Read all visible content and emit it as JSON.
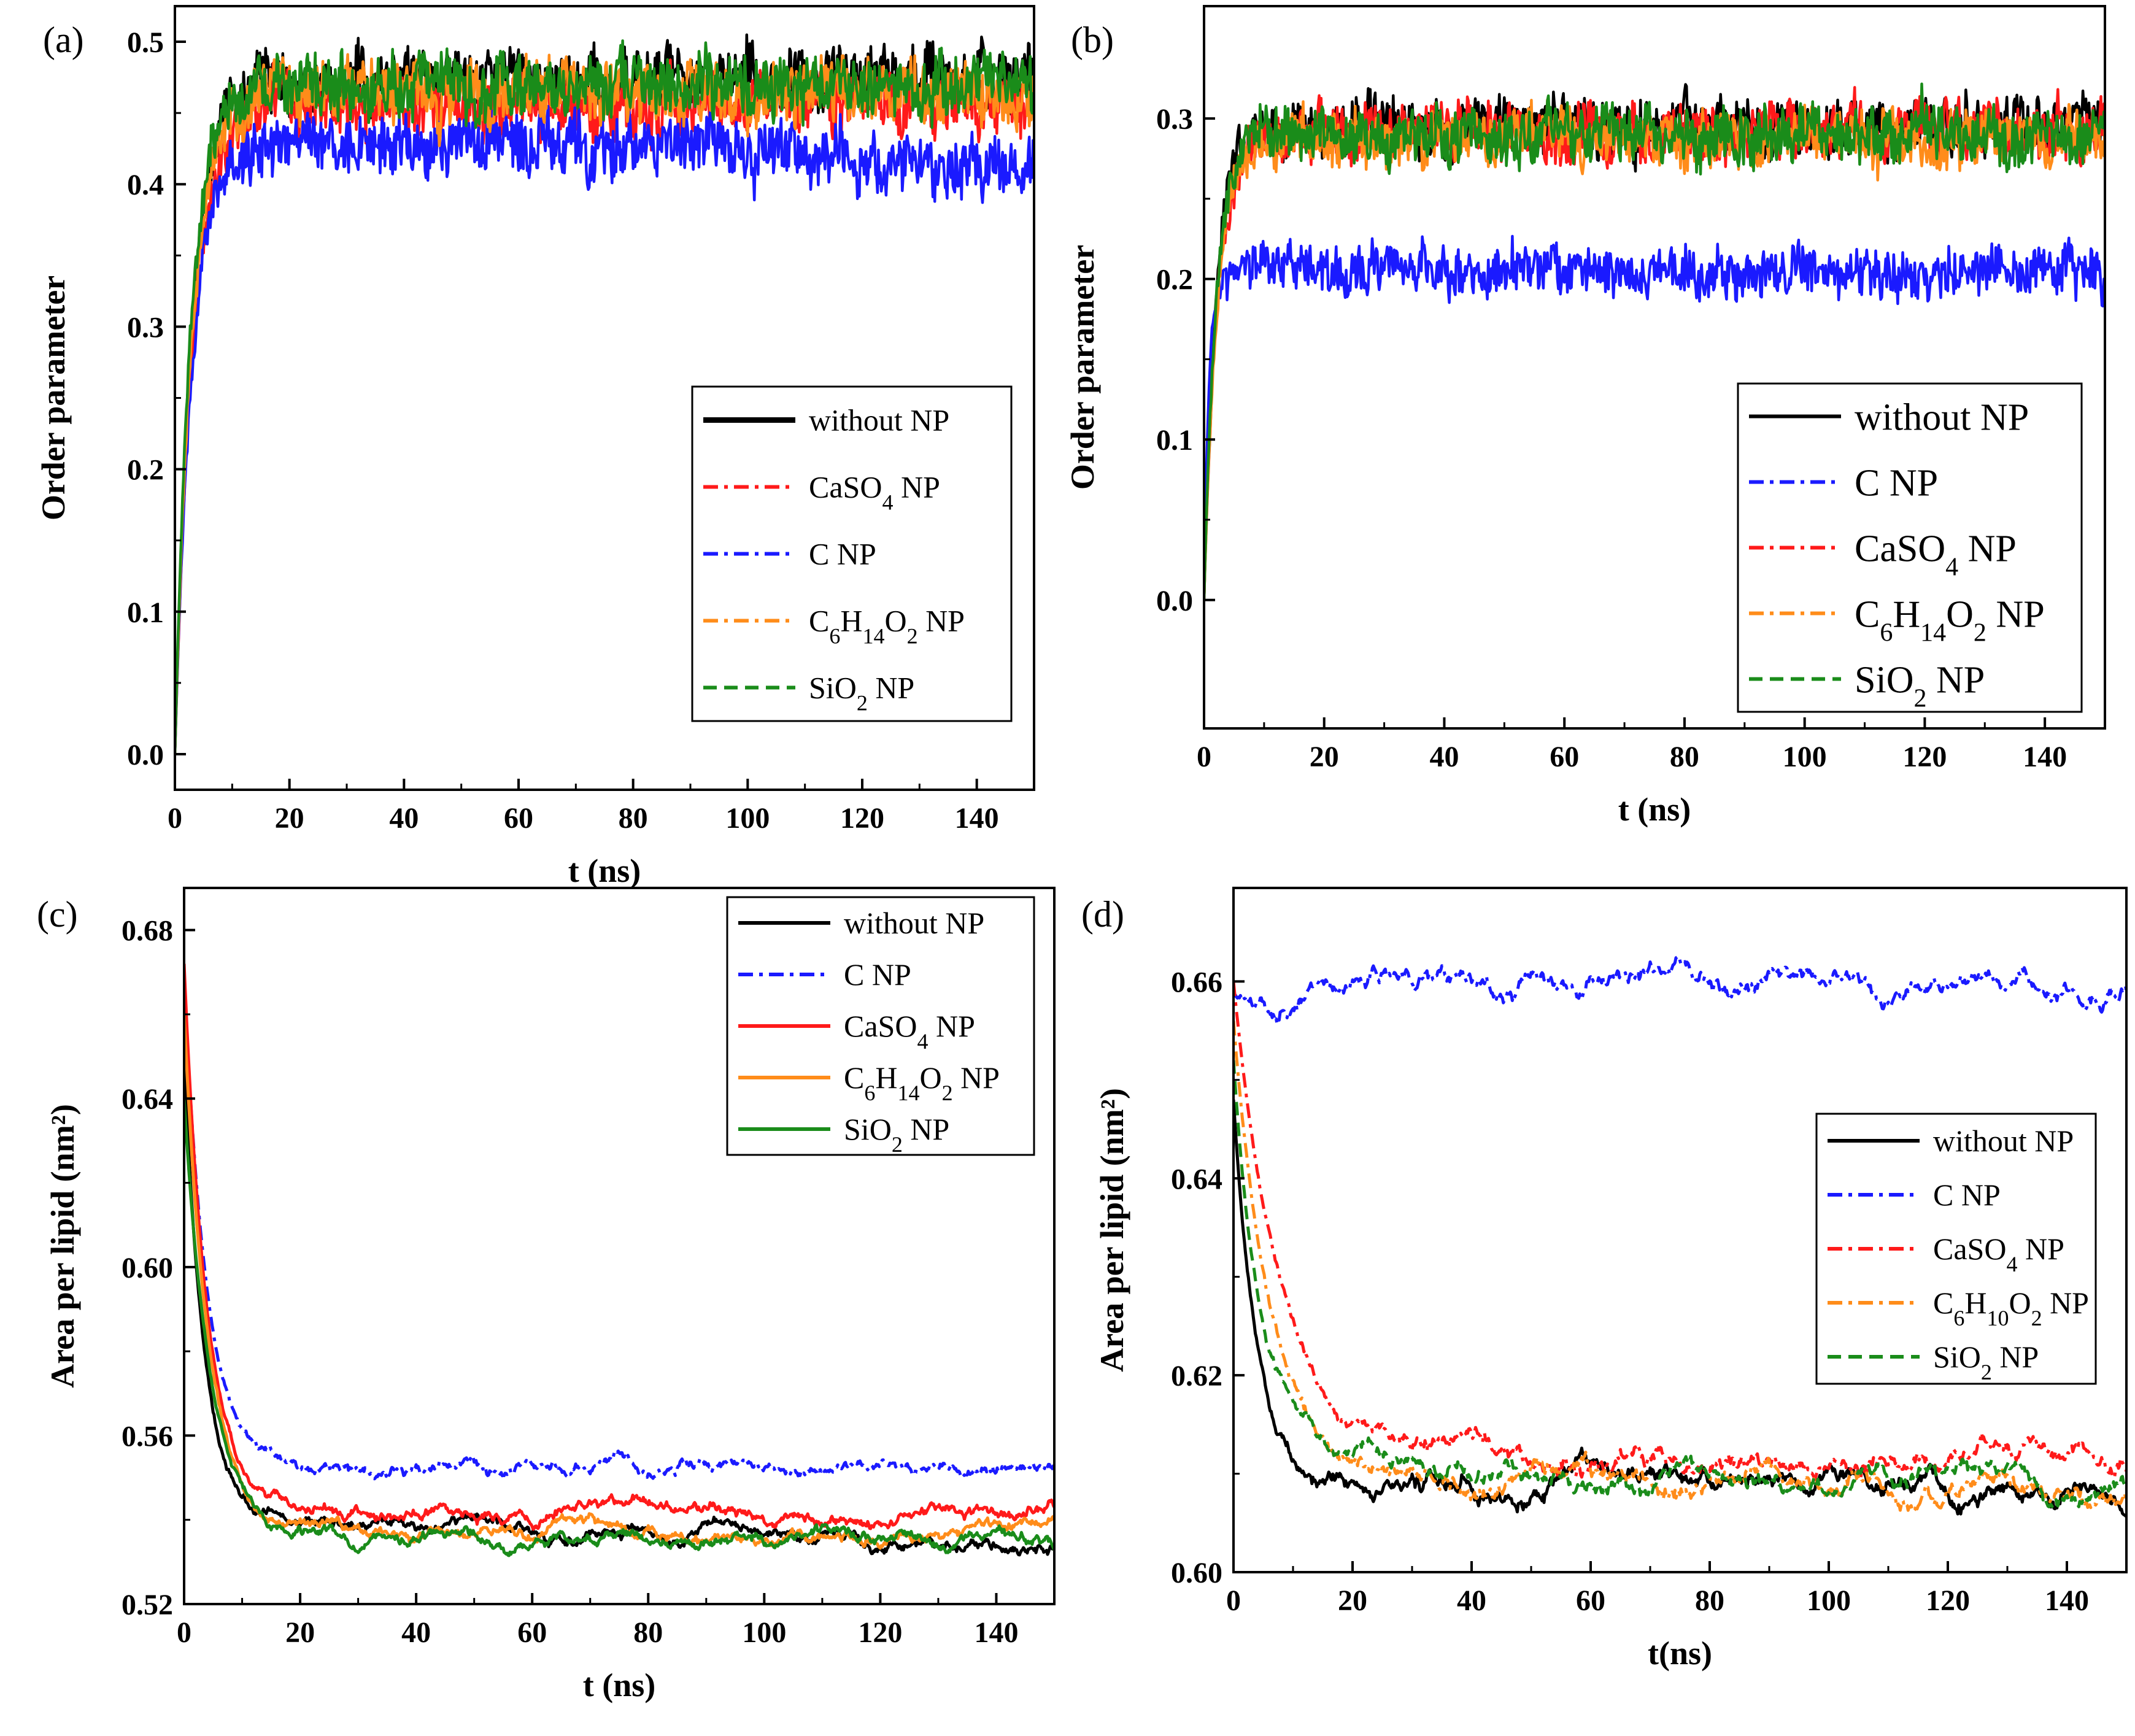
{
  "figure": {
    "description": "Four-panel figure: order parameter and area per lipid versus time with different nanoparticles"
  },
  "chart_data": [
    {
      "id": "a",
      "type": "line",
      "panel_label": "(a)",
      "xlabel": "t (ns)",
      "ylabel": "Order parameter",
      "xlim": [
        0,
        150
      ],
      "ylim": [
        -0.025,
        0.525
      ],
      "xticks": [
        0,
        20,
        40,
        60,
        80,
        100,
        120,
        140
      ],
      "yticks": [
        0.0,
        0.1,
        0.2,
        0.3,
        0.4,
        0.5
      ],
      "ytick_labels": [
        "0.0",
        "0.1",
        "0.2",
        "0.3",
        "0.4",
        "0.5"
      ],
      "legend_position": "lower-right",
      "legend_size": "normal",
      "series": [
        {
          "name": "without NP",
          "label_html": "without NP",
          "color": "#000000",
          "dash": "none",
          "start": 0.0,
          "plateau": 0.475,
          "tau": 3.0,
          "noise": 0.022,
          "drift": [
            0.0,
            0.0,
            0.0
          ]
        },
        {
          "name": "CaSO4 NP",
          "label_html": "CaSO<tspan baseline-shift='sub' font-size='36'>4</tspan> NP",
          "color": "#ff1a1a",
          "dash": "dashdot",
          "start": 0.0,
          "plateau": 0.455,
          "tau": 3.2,
          "noise": 0.022,
          "drift": [
            0.0,
            0.0,
            0.0
          ]
        },
        {
          "name": "C NP",
          "label_html": "C NP",
          "color": "#1a1aff",
          "dash": "dashdot",
          "start": 0.0,
          "plateau": 0.425,
          "tau": 3.0,
          "noise": 0.022,
          "drift": [
            0.005,
            0.0,
            -0.015
          ]
        },
        {
          "name": "C6H14O2 NP",
          "label_html": "C<tspan baseline-shift='sub' font-size='36'>6</tspan>H<tspan baseline-shift='sub' font-size='36'>14</tspan>O<tspan baseline-shift='sub' font-size='36'>2</tspan> NP",
          "color": "#ff8c1a",
          "dash": "dashdot",
          "start": 0.0,
          "plateau": 0.465,
          "tau": 3.0,
          "noise": 0.022,
          "drift": [
            0.0,
            0.0,
            0.0
          ]
        },
        {
          "name": "SiO2 NP",
          "label_html": "SiO<tspan baseline-shift='sub' font-size='36'>2</tspan> NP",
          "color": "#1a8c1a",
          "dash": "dash",
          "start": 0.0,
          "plateau": 0.47,
          "tau": 2.8,
          "noise": 0.022,
          "drift": [
            0.0,
            0.0,
            0.0
          ]
        }
      ]
    },
    {
      "id": "b",
      "type": "line",
      "panel_label": "(b)",
      "xlabel": "t (ns)",
      "ylabel": "Order parameter",
      "xlim": [
        0,
        150
      ],
      "ylim": [
        -0.08,
        0.37
      ],
      "xticks": [
        0,
        20,
        40,
        60,
        80,
        100,
        120,
        140
      ],
      "yticks": [
        0.0,
        0.1,
        0.2,
        0.3
      ],
      "ytick_labels": [
        "0.0",
        "0.1",
        "0.2",
        "0.3"
      ],
      "legend_position": "lower-right",
      "legend_size": "big",
      "series": [
        {
          "name": "without NP",
          "label_html": "without NP",
          "color": "#000000",
          "dash": "none",
          "start": 0.0,
          "plateau": 0.295,
          "tau": 2.0,
          "noise": 0.018,
          "drift": [
            0.0,
            0.0,
            0.0
          ]
        },
        {
          "name": "C NP",
          "label_html": "C NP",
          "color": "#1a1aff",
          "dash": "dashdot",
          "start": 0.0,
          "plateau": 0.205,
          "tau": 0.8,
          "noise": 0.016,
          "drift": [
            0.0,
            0.0,
            0.0
          ]
        },
        {
          "name": "CaSO4 NP",
          "label_html": "CaSO<tspan baseline-shift='sub' font-size='42'>4</tspan> NP",
          "color": "#ff1a1a",
          "dash": "dashdot",
          "start": 0.0,
          "plateau": 0.292,
          "tau": 2.2,
          "noise": 0.018,
          "drift": [
            0.0,
            0.0,
            0.0
          ]
        },
        {
          "name": "C6H14O2 NP",
          "label_html": "C<tspan baseline-shift='sub' font-size='42'>6</tspan>H<tspan baseline-shift='sub' font-size='42'>14</tspan>O<tspan baseline-shift='sub' font-size='42'>2</tspan> NP",
          "color": "#ff8c1a",
          "dash": "dashdot",
          "start": 0.0,
          "plateau": 0.288,
          "tau": 2.2,
          "noise": 0.018,
          "drift": [
            0.0,
            0.0,
            0.0
          ]
        },
        {
          "name": "SiO2 NP",
          "label_html": "SiO<tspan baseline-shift='sub' font-size='42'>2</tspan> NP",
          "color": "#1a8c1a",
          "dash": "dash",
          "start": 0.0,
          "plateau": 0.29,
          "tau": 2.0,
          "noise": 0.018,
          "drift": [
            0.0,
            0.0,
            0.0
          ]
        }
      ]
    },
    {
      "id": "c",
      "type": "line",
      "panel_label": "(c)",
      "xlabel": "t (ns)",
      "ylabel": "Area per lipid (nm²)",
      "xlim": [
        0,
        150
      ],
      "ylim": [
        0.52,
        0.69
      ],
      "xticks": [
        0,
        20,
        40,
        60,
        80,
        100,
        120,
        140
      ],
      "yticks": [
        0.52,
        0.56,
        0.6,
        0.64,
        0.68
      ],
      "ytick_labels": [
        "0.52",
        "0.56",
        "0.60",
        "0.64",
        "0.68"
      ],
      "legend_position": "top-right",
      "legend_size": "normal",
      "series": [
        {
          "name": "without NP",
          "label_html": "without NP",
          "color": "#000000",
          "dash": "none",
          "start": 0.65,
          "plateau": 0.538,
          "tau": 3.5,
          "noise": 0.0012,
          "drift": [
            0.002,
            0.0,
            -0.004
          ]
        },
        {
          "name": "C NP",
          "label_html": "C NP",
          "color": "#1a1aff",
          "dash": "dashdot",
          "start": 0.668,
          "plateau": 0.551,
          "tau": 4.0,
          "noise": 0.0012,
          "drift": [
            0.0,
            0.0015,
            0.0005
          ]
        },
        {
          "name": "CaSO4 NP",
          "label_html": "CaSO<tspan baseline-shift='sub' font-size='36'>4</tspan> NP",
          "color": "#ff1a1a",
          "dash": "none",
          "start": 0.672,
          "plateau": 0.542,
          "tau": 4.0,
          "noise": 0.0012,
          "drift": [
            0.0,
            0.0,
            0.001
          ]
        },
        {
          "name": "C6H14O2 NP",
          "label_html": "C<tspan baseline-shift='sub' font-size='36'>6</tspan>H<tspan baseline-shift='sub' font-size='36'>14</tspan>O<tspan baseline-shift='sub' font-size='36'>2</tspan> NP",
          "color": "#ff8c1a",
          "dash": "none",
          "start": 0.66,
          "plateau": 0.537,
          "tau": 4.2,
          "noise": 0.0012,
          "drift": [
            0.0,
            -0.001,
            0.0
          ]
        },
        {
          "name": "SiO2 NP",
          "label_html": "SiO<tspan baseline-shift='sub' font-size='36'>2</tspan> NP",
          "color": "#1a8c1a",
          "dash": "none",
          "start": 0.64,
          "plateau": 0.536,
          "tau": 4.5,
          "noise": 0.0012,
          "drift": [
            0.003,
            -0.002,
            -0.001
          ]
        }
      ]
    },
    {
      "id": "d",
      "type": "line",
      "panel_label": "(d)",
      "xlabel": "t(ns)",
      "ylabel": "Area per lipid (nm²)",
      "xlim": [
        0,
        150
      ],
      "ylim": [
        0.6,
        0.6695
      ],
      "xticks": [
        0,
        20,
        40,
        60,
        80,
        100,
        120,
        140
      ],
      "yticks": [
        0.6,
        0.62,
        0.64,
        0.66
      ],
      "ytick_labels": [
        "0.60",
        "0.62",
        "0.64",
        "0.66"
      ],
      "legend_position": "right",
      "legend_size": "normal",
      "series": [
        {
          "name": "without NP",
          "label_html": "without NP",
          "color": "#000000",
          "dash": "none",
          "start": 0.648,
          "plateau": 0.609,
          "tau": 4.0,
          "noise": 0.0008,
          "drift": [
            0.0,
            0.0,
            0.0
          ]
        },
        {
          "name": "C NP",
          "label_html": "C NP",
          "color": "#1a1aff",
          "dash": "dashdot",
          "start": 0.659,
          "plateau": 0.6585,
          "tau": 0.5,
          "noise": 0.0008,
          "drift": [
            -0.001,
            0.002,
            0.0
          ]
        },
        {
          "name": "CaSO4 NP",
          "label_html": "CaSO<tspan baseline-shift='sub' font-size='36'>4</tspan> NP",
          "color": "#ff1a1a",
          "dash": "dashdot",
          "start": 0.66,
          "plateau": 0.611,
          "tau": 7.5,
          "noise": 0.0008,
          "drift": [
            0.004,
            0.0,
            0.001
          ]
        },
        {
          "name": "C6H10O2 NP",
          "label_html": "C<tspan baseline-shift='sub' font-size='36'>6</tspan>H<tspan baseline-shift='sub' font-size='36'>10</tspan>O<tspan baseline-shift='sub' font-size='36'>2</tspan> NP",
          "color": "#ff8c1a",
          "dash": "dashdot",
          "start": 0.656,
          "plateau": 0.609,
          "tau": 6.0,
          "noise": 0.0008,
          "drift": [
            0.002,
            0.0,
            0.0
          ]
        },
        {
          "name": "SiO2 NP",
          "label_html": "SiO<tspan baseline-shift='sub' font-size='36'>2</tspan> NP",
          "color": "#1a8c1a",
          "dash": "dash",
          "start": 0.652,
          "plateau": 0.609,
          "tau": 4.5,
          "noise": 0.0008,
          "drift": [
            0.003,
            0.0,
            0.0
          ]
        }
      ]
    }
  ]
}
